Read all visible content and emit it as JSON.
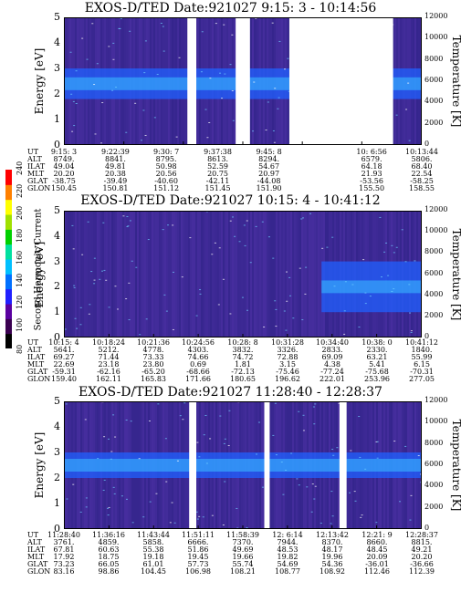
{
  "panels": [
    {
      "title": "EXOS-D/TED   Date:921027  9:15: 3 - 10:14:56",
      "ylabel": "Energy [eV]",
      "ylabel_right": "Temperature [K]",
      "orbit_rows": [
        "UT",
        "ALT",
        "ILAT",
        "MLT",
        "GLAT",
        "GLON"
      ],
      "orbit_columns": [
        [
          "9:15: 3",
          "8749.",
          "49.04",
          "20.20",
          "-38.75",
          "150.45"
        ],
        [
          "9:22:39",
          "8841.",
          "49.81",
          "20.38",
          "-39.49",
          "150.81"
        ],
        [
          "9:30: 7",
          "8795.",
          "50.98",
          "20.56",
          "-40.60",
          "151.12"
        ],
        [
          "9:37:38",
          "8613.",
          "52.59",
          "20.75",
          "-42.11",
          "151.45"
        ],
        [
          "9:45: 8",
          "8294.",
          "54.67",
          "20.97",
          "-44.08",
          "151.90"
        ],
        [
          "10: 6:56",
          "6579.",
          "64.18",
          "21.93",
          "-53.56",
          "155.50"
        ],
        [
          "10:13:44",
          "5806.",
          "68.40",
          "22.54",
          "-58.25",
          "158.55"
        ]
      ]
    },
    {
      "title": "EXOS-D/TED   Date:921027  10:15: 4 - 10:41:12",
      "ylabel": "Energy [eV]",
      "ylabel_right": "Temperature [K]",
      "orbit_rows": [
        "UT",
        "ALT",
        "ILAT",
        "MLT",
        "GLAT",
        "GLON"
      ],
      "orbit_columns": [
        [
          "10:15: 4",
          "5641.",
          "69.27",
          "22.69",
          "-59.31",
          "159.40"
        ],
        [
          "10:18:24",
          "5212.",
          "71.44",
          "23.18",
          "-62.16",
          "162.11"
        ],
        [
          "10:21:36",
          "4778.",
          "73.33",
          "23.80",
          "-65.20",
          "165.83"
        ],
        [
          "10:24:56",
          "4303.",
          "74.66",
          "0.69",
          "-68.66",
          "171.66"
        ],
        [
          "10:28: 8",
          "3832.",
          "74.72",
          "1.81",
          "-72.13",
          "180.65"
        ],
        [
          "10:31:28",
          "3326.",
          "72.88",
          "3.15",
          "-75.46",
          "196.62"
        ],
        [
          "10:34:40",
          "2833.",
          "69.09",
          "4.38",
          "-77.24",
          "222.01"
        ],
        [
          "10:38: 0",
          "2330.",
          "63.21",
          "5.41",
          "-75.68",
          "253.96"
        ],
        [
          "10:41:12",
          "1840.",
          "55.99",
          "6.15",
          "-70.31",
          "277.05"
        ]
      ]
    },
    {
      "title": "EXOS-D/TED   Date:921027  11:28:40 - 12:28:37",
      "ylabel": "Energy [eV]",
      "ylabel_right": "Temperature [K]",
      "orbit_rows": [
        "UT",
        "ALT",
        "ILAT",
        "MLT",
        "GLAT",
        "GLON"
      ],
      "orbit_columns": [
        [
          "11:28:40",
          "3761.",
          "67.81",
          "17.92",
          "73.23",
          "83.16"
        ],
        [
          "11:36:16",
          "4859.",
          "60.63",
          "18.75",
          "66.05",
          "98.86"
        ],
        [
          "11:43:44",
          "5858.",
          "55.38",
          "19.18",
          "61.01",
          "104.45"
        ],
        [
          "11:51:11",
          "6666.",
          "51.86",
          "19.45",
          "57.73",
          "106.98"
        ],
        [
          "11:58:39",
          "7370.",
          "49.69",
          "19.66",
          "55.74",
          "108.21"
        ],
        [
          "12: 6:14",
          "7944.",
          "48.53",
          "19.82",
          "54.69",
          "108.77"
        ],
        [
          "12:13:42",
          "8370.",
          "48.17",
          "19.96",
          "54.36",
          "108.92"
        ],
        [
          "12:21: 9",
          "8660.",
          "48.45",
          "20.09",
          "-36.01",
          "112.46"
        ],
        [
          "12:28:37",
          "8815.",
          "49.21",
          "20.20",
          "-36.66",
          "112.39"
        ]
      ]
    }
  ],
  "colorbar": {
    "label": "Second Harmonic Current",
    "ticks": [
      "80",
      "100",
      "120",
      "140",
      "160",
      "180",
      "200",
      "220",
      "240"
    ],
    "colors": [
      "#000000",
      "#3a0050",
      "#5a00a0",
      "#2020ff",
      "#0070ff",
      "#00c0ff",
      "#00e0a0",
      "#00d000",
      "#a0e000",
      "#ffff00",
      "#ff8000",
      "#ff0000"
    ]
  },
  "chart_data": [
    {
      "type": "heatmap",
      "title": "EXOS-D/TED   Date:921027  9:15: 3 - 10:14:56",
      "xlabel": "UT",
      "ylabel": "Energy [eV]",
      "ylabel_right": "Temperature [K]",
      "ylim": [
        0,
        5
      ],
      "ylim_right": [
        0,
        12000
      ],
      "yticks": [
        "0",
        "1",
        "2",
        "3",
        "4",
        "5"
      ],
      "yticks_right": [
        "0",
        "2000",
        "4000",
        "6000",
        "8000",
        "10000",
        "12000"
      ],
      "x_ticks": [
        "9:15: 3",
        "9:22:39",
        "9:30: 7",
        "9:37:38",
        "9:45: 8",
        "10: 6:56",
        "10:13:44"
      ],
      "enhancement_band_energy_eV": [
        1.8,
        3.0
      ],
      "data_gaps_fraction_of_axis": [
        [
          0.345,
          0.37
        ],
        [
          0.48,
          0.52
        ],
        [
          0.63,
          0.92
        ]
      ],
      "colorscale": "Second Harmonic Current",
      "clim": [
        80,
        240
      ]
    },
    {
      "type": "heatmap",
      "title": "EXOS-D/TED   Date:921027  10:15: 4 - 10:41:12",
      "xlabel": "UT",
      "ylabel": "Energy [eV]",
      "ylabel_right": "Temperature [K]",
      "ylim": [
        0,
        5
      ],
      "ylim_right": [
        0,
        12000
      ],
      "yticks": [
        "0",
        "1",
        "2",
        "3",
        "4",
        "5"
      ],
      "yticks_right": [
        "0",
        "2000",
        "4000",
        "6000",
        "8000",
        "10000",
        "12000"
      ],
      "x_ticks": [
        "10:15: 4",
        "10:18:24",
        "10:21:36",
        "10:24:56",
        "10:28: 8",
        "10:31:28",
        "10:34:40",
        "10:38: 0",
        "10:41:12"
      ],
      "enhancement_region_ut": [
        "10:34:40",
        "10:41:12"
      ],
      "enhancement_band_energy_eV": [
        1.0,
        3.0
      ],
      "colorscale": "Second Harmonic Current",
      "clim": [
        80,
        240
      ]
    },
    {
      "type": "heatmap",
      "title": "EXOS-D/TED   Date:921027  11:28:40 - 12:28:37",
      "xlabel": "UT",
      "ylabel": "Energy [eV]",
      "ylabel_right": "Temperature [K]",
      "ylim": [
        0,
        5
      ],
      "ylim_right": [
        0,
        12000
      ],
      "yticks": [
        "0",
        "1",
        "2",
        "3",
        "4",
        "5"
      ],
      "yticks_right": [
        "0",
        "2000",
        "4000",
        "6000",
        "8000",
        "10000",
        "12000"
      ],
      "x_ticks": [
        "11:28:40",
        "11:36:16",
        "11:43:44",
        "11:51:11",
        "11:58:39",
        "12: 6:14",
        "12:13:42",
        "12:21: 9",
        "12:28:37"
      ],
      "enhancement_band_energy_eV": [
        2.0,
        3.0
      ],
      "data_gaps_fraction_of_axis": [
        [
          0.35,
          0.37
        ],
        [
          0.56,
          0.575
        ],
        [
          0.77,
          0.79
        ]
      ],
      "colorscale": "Second Harmonic Current",
      "clim": [
        80,
        240
      ]
    }
  ]
}
